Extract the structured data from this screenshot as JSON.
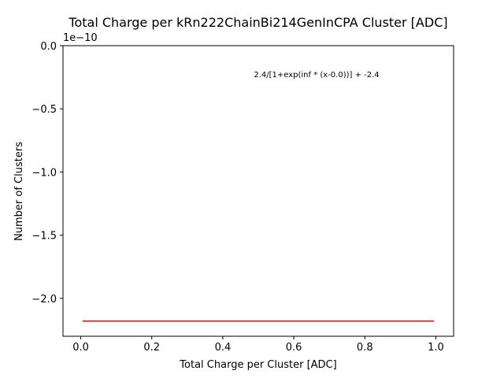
{
  "chart_data": {
    "type": "line",
    "title": "Total Charge per kRn222ChainBi214GenInCPA Cluster [ADC]",
    "xlabel": "Total Charge per Cluster [ADC]",
    "ylabel": "Number of Clusters",
    "y_offset_text": "1e−10",
    "annotation": "2.4/[1+exp(inf * (x-0.0))] + -2.4",
    "xlim": [
      -0.05,
      1.05
    ],
    "ylim": [
      -2.3,
      0.0
    ],
    "x_ticks": [
      0.0,
      0.2,
      0.4,
      0.6,
      0.8,
      1.0
    ],
    "x_tick_labels": [
      "0.0",
      "0.2",
      "0.4",
      "0.6",
      "0.8",
      "1.0"
    ],
    "y_ticks": [
      0.0,
      -0.5,
      -1.0,
      -1.5,
      -2.0
    ],
    "y_tick_labels": [
      "0.0",
      "−0.5",
      "−1.0",
      "−1.5",
      "−2.0"
    ],
    "grid": false,
    "series": [
      {
        "color": "#ff0000",
        "x": [
          0.005,
          0.995
        ],
        "y": [
          -2.18,
          -2.18
        ]
      }
    ]
  }
}
